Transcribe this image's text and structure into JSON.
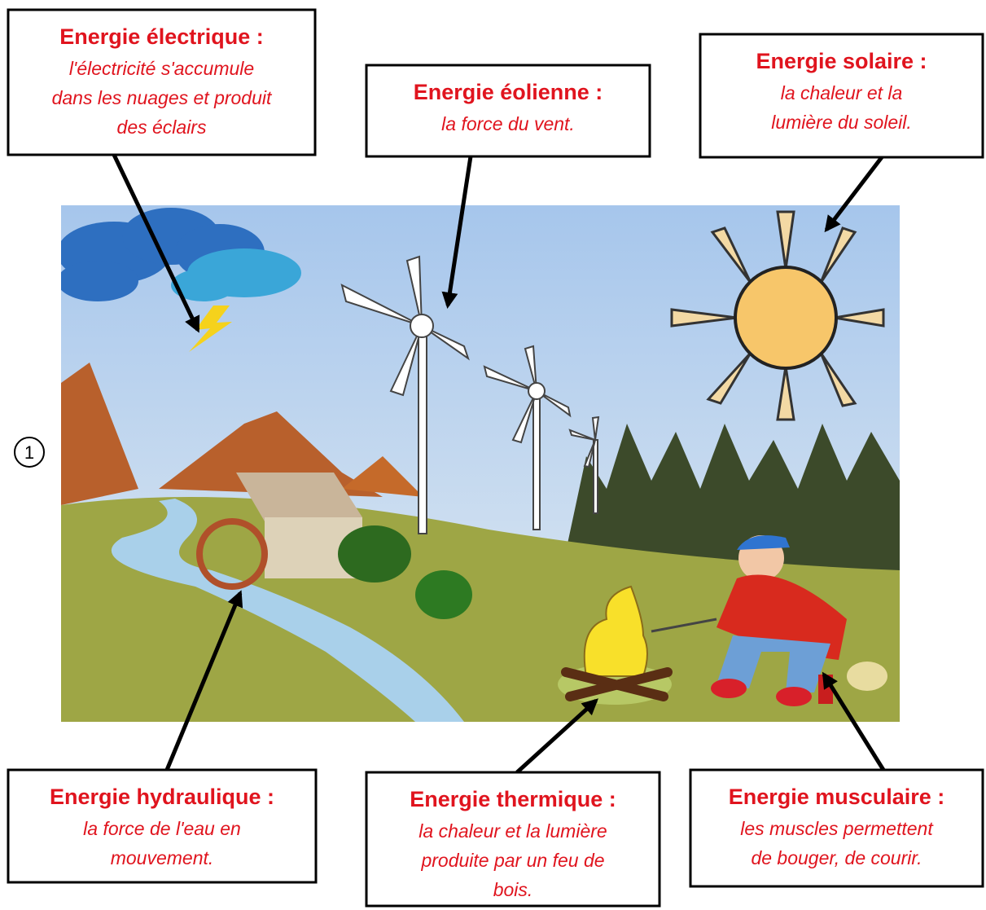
{
  "boxes": [
    {
      "title": "Energie électrique :",
      "lines": [
        "l'électricité s'accumule",
        "dans les nuages et produit",
        "des éclairs"
      ]
    },
    {
      "title": "Energie éolienne :",
      "lines": [
        "la force du vent."
      ]
    },
    {
      "title": "Energie solaire :",
      "lines": [
        "la chaleur et la",
        "lumière du soleil."
      ]
    },
    {
      "title": "Energie hydraulique :",
      "lines": [
        "la force de l'eau en",
        "mouvement."
      ]
    },
    {
      "title": "Energie thermique :",
      "lines": [
        "la chaleur et la lumière",
        "produite par un feu de",
        "bois."
      ]
    },
    {
      "title": "Energie musculaire :",
      "lines": [
        "les muscles permettent",
        "de bouger, de courir."
      ]
    }
  ],
  "marker": "1"
}
